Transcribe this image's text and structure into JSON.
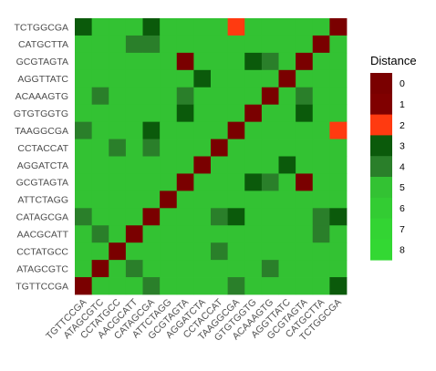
{
  "chart_data": {
    "type": "heatmap",
    "title": "",
    "xlabel": "",
    "ylabel": "",
    "rows": [
      "TCTGGCGA",
      "CATGCTTA",
      "GCGTAGTA",
      "AGGTTATC",
      "ACAAAGTG",
      "GTGTGGTG",
      "TAAGGCGA",
      "CCTACCAT",
      "AGGATCTA",
      "GCGTAGTA",
      "ATTCTAGG",
      "CATAGCGA",
      "AACGCATT",
      "CCTATGCC",
      "ATAGCGTC",
      "TGTTCCGA"
    ],
    "columns": [
      "TGTTCCGA",
      "ATAGCGTC",
      "CCTATGCC",
      "AACGCATT",
      "CATAGCGA",
      "ATTCTAGG",
      "GCGTAGTA",
      "AGGATCTA",
      "CCTACCAT",
      "TAAGGCGA",
      "GTGTGGTG",
      "ACAAAGTG",
      "AGGTTATC",
      "GCGTAGTA",
      "CATGCTTA",
      "TCTGGCGA"
    ],
    "values": [
      [
        3,
        5,
        5,
        5,
        3,
        5,
        5,
        5,
        5,
        2,
        5,
        5,
        5,
        5,
        5,
        0
      ],
      [
        5,
        5,
        5,
        4,
        4,
        5,
        5,
        5,
        5,
        5,
        5,
        5,
        5,
        5,
        0,
        5
      ],
      [
        5,
        5,
        5,
        5,
        5,
        5,
        0,
        5,
        5,
        5,
        3,
        4,
        5,
        0,
        5,
        5
      ],
      [
        5,
        5,
        5,
        5,
        5,
        5,
        5,
        3,
        5,
        5,
        5,
        5,
        0,
        5,
        5,
        5
      ],
      [
        5,
        4,
        5,
        5,
        5,
        5,
        4,
        5,
        5,
        5,
        5,
        0,
        5,
        4,
        5,
        5
      ],
      [
        5,
        5,
        5,
        5,
        5,
        5,
        3,
        5,
        5,
        5,
        0,
        5,
        5,
        3,
        5,
        5
      ],
      [
        4,
        5,
        5,
        5,
        3,
        5,
        5,
        5,
        5,
        0,
        5,
        5,
        5,
        5,
        5,
        2
      ],
      [
        5,
        5,
        4,
        5,
        4,
        5,
        5,
        5,
        0,
        5,
        5,
        5,
        5,
        5,
        5,
        5
      ],
      [
        5,
        5,
        5,
        5,
        5,
        5,
        5,
        0,
        5,
        5,
        5,
        5,
        3,
        5,
        5,
        5
      ],
      [
        5,
        5,
        5,
        5,
        5,
        5,
        0,
        5,
        5,
        5,
        3,
        4,
        5,
        0,
        5,
        5
      ],
      [
        5,
        5,
        5,
        5,
        5,
        0,
        5,
        5,
        5,
        5,
        5,
        5,
        5,
        5,
        5,
        5
      ],
      [
        4,
        5,
        5,
        5,
        0,
        5,
        5,
        5,
        4,
        3,
        5,
        5,
        5,
        5,
        4,
        3
      ],
      [
        5,
        4,
        5,
        0,
        5,
        5,
        5,
        5,
        5,
        5,
        5,
        5,
        5,
        5,
        4,
        5
      ],
      [
        5,
        5,
        0,
        5,
        5,
        5,
        5,
        5,
        4,
        5,
        5,
        5,
        5,
        5,
        5,
        5
      ],
      [
        5,
        0,
        5,
        4,
        5,
        5,
        5,
        5,
        5,
        5,
        5,
        4,
        5,
        5,
        5,
        5
      ],
      [
        0,
        5,
        5,
        5,
        4,
        5,
        5,
        5,
        5,
        4,
        5,
        5,
        5,
        5,
        5,
        3
      ]
    ],
    "legend": {
      "title": "Distance",
      "placement": "right",
      "levels": [
        0,
        1,
        2,
        3,
        4,
        5,
        6,
        7,
        8
      ],
      "colors": [
        "#7a0000",
        "#800000",
        "#ff3a10",
        "#0b5a0b",
        "#2a7f2a",
        "#33c233",
        "#33cc33",
        "#33d433",
        "#33d833"
      ]
    }
  }
}
